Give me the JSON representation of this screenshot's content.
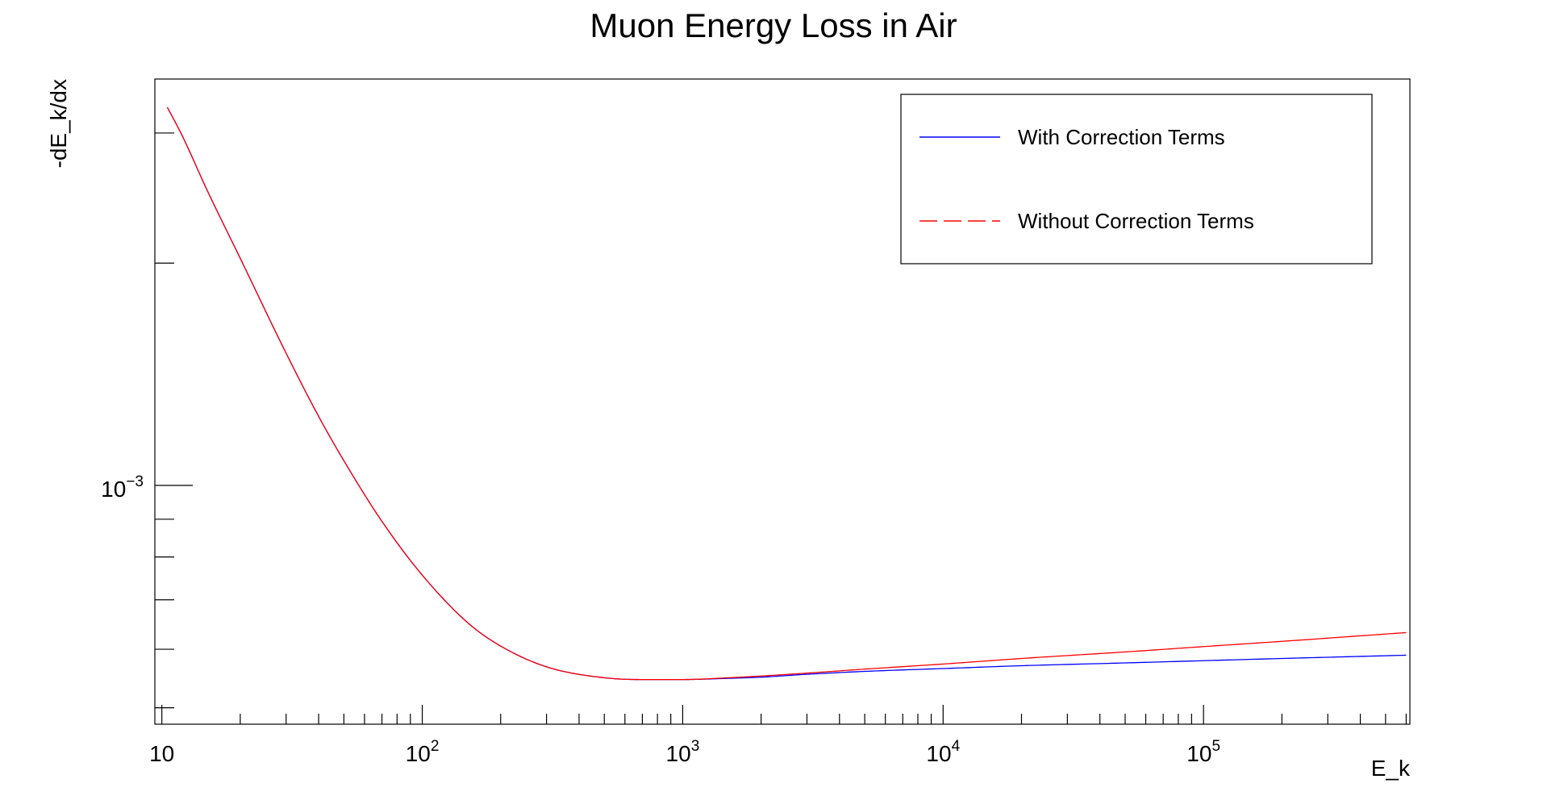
{
  "chart_data": {
    "type": "line",
    "title": "Muon Energy Loss in Air",
    "xlabel": "E_k",
    "ylabel": "-dE_k/dx",
    "x_scale": "log",
    "y_scale": "log",
    "xlim": [
      9.4,
      620000
    ],
    "ylim": [
      0.000475,
      0.00355
    ],
    "x_tick_labels": [
      {
        "value": 10,
        "base": "10",
        "exp": ""
      },
      {
        "value": 100,
        "base": "10",
        "exp": "2"
      },
      {
        "value": 1000,
        "base": "10",
        "exp": "3"
      },
      {
        "value": 10000,
        "base": "10",
        "exp": "4"
      },
      {
        "value": 100000,
        "base": "10",
        "exp": "5"
      }
    ],
    "y_tick_labels": [
      {
        "value": 0.001,
        "base": "10",
        "exp": "−3"
      }
    ],
    "y_minor_ticks": [
      0.0005,
      0.0006,
      0.0007,
      0.0008,
      0.0009,
      0.002,
      0.003
    ],
    "grid": false,
    "legend": {
      "position": "top-right",
      "entries": [
        {
          "name": "With Correction Terms",
          "color": "#0000ff",
          "style": "solid"
        },
        {
          "name": "Without Correction Terms",
          "color": "#ff0000",
          "style": "dashed"
        }
      ]
    },
    "series": [
      {
        "name": "With Correction Terms",
        "color": "#0000ff",
        "x": [
          10.5,
          12,
          15,
          20,
          30,
          40,
          50,
          70,
          100,
          150,
          200,
          300,
          500,
          700,
          1000,
          1500,
          2000,
          3000,
          5000,
          10000,
          20000,
          50000,
          100000,
          200000,
          600000
        ],
        "y": [
          0.00325,
          0.00297,
          0.0025,
          0.00203,
          0.00151,
          0.00124,
          0.00108,
          0.000894,
          0.000756,
          0.000651,
          0.000606,
          0.000568,
          0.000549,
          0.000546,
          0.000546,
          0.000548,
          0.00055,
          0.000555,
          0.00056,
          0.000565,
          0.00057,
          0.000575,
          0.000579,
          0.000583,
          0.000589
        ]
      },
      {
        "name": "Without Correction Terms",
        "color": "#ff0000",
        "x": [
          10.5,
          12,
          15,
          20,
          30,
          40,
          50,
          70,
          100,
          150,
          200,
          300,
          500,
          700,
          1000,
          1500,
          2000,
          3000,
          5000,
          10000,
          20000,
          50000,
          100000,
          200000,
          600000
        ],
        "y": [
          0.00325,
          0.00297,
          0.0025,
          0.00203,
          0.00151,
          0.00124,
          0.00108,
          0.000894,
          0.000756,
          0.000651,
          0.000606,
          0.000568,
          0.000549,
          0.000546,
          0.000546,
          0.000549,
          0.000552,
          0.000557,
          0.000564,
          0.000573,
          0.000583,
          0.000595,
          0.000605,
          0.000615,
          0.000632
        ]
      }
    ]
  }
}
